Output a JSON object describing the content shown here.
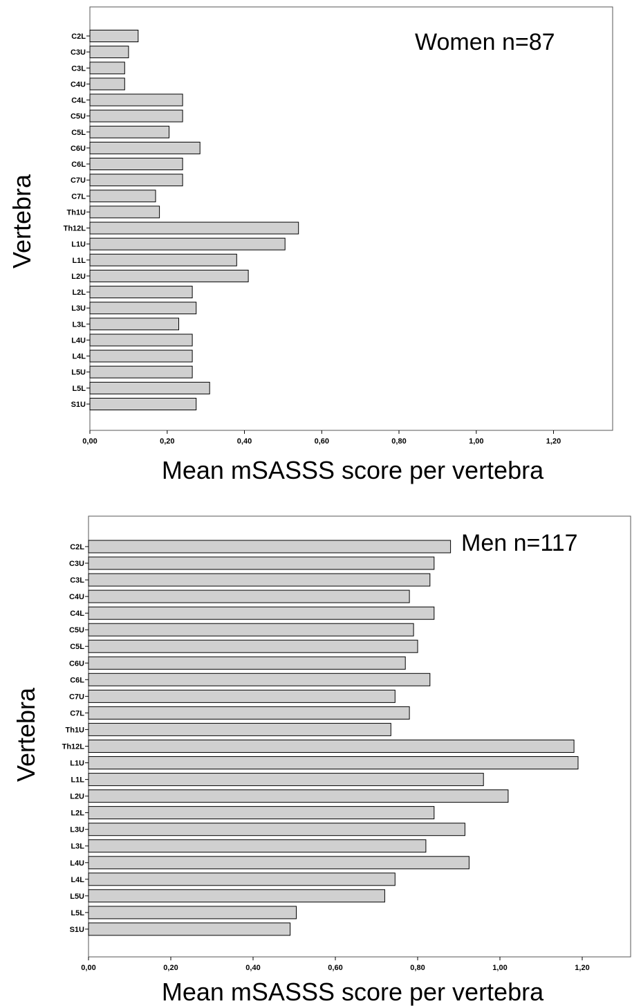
{
  "chart_data": [
    {
      "type": "bar",
      "orientation": "horizontal",
      "annotation": "Women n=87",
      "xlabel": "Mean mSASSS score per vertebra",
      "ylabel": "Vertebra",
      "xlim": [
        0,
        1.3
      ],
      "x_ticks": [
        "0,00",
        "0,20",
        "0,40",
        "0,60",
        "0,80",
        "1,00",
        "1,20"
      ],
      "categories": [
        "C2L",
        "C3U",
        "C3L",
        "C4U",
        "C4L",
        "C5U",
        "C5L",
        "C6U",
        "C6L",
        "C7U",
        "C7L",
        "Th1U",
        "Th12L",
        "L1U",
        "L1L",
        "L2U",
        "L2L",
        "L3U",
        "L3L",
        "L4U",
        "L4L",
        "L5U",
        "L5L",
        "S1U"
      ],
      "values": [
        0.125,
        0.1,
        0.09,
        0.09,
        0.24,
        0.24,
        0.205,
        0.285,
        0.24,
        0.24,
        0.17,
        0.18,
        0.54,
        0.505,
        0.38,
        0.41,
        0.265,
        0.275,
        0.23,
        0.265,
        0.265,
        0.265,
        0.31,
        0.275
      ],
      "grid": false
    },
    {
      "type": "bar",
      "orientation": "horizontal",
      "annotation": "Men n=117",
      "xlabel": "Mean mSASSS score per vertebra",
      "ylabel": "Vertebra",
      "xlim": [
        0,
        1.33
      ],
      "x_ticks": [
        "0,00",
        "0,20",
        "0,40",
        "0,60",
        "0,80",
        "1,00",
        "1,20"
      ],
      "categories": [
        "C2L",
        "C3U",
        "C3L",
        "C4U",
        "C4L",
        "C5U",
        "C5L",
        "C6U",
        "C6L",
        "C7U",
        "C7L",
        "Th1U",
        "Th12L",
        "L1U",
        "L1L",
        "L2U",
        "L2L",
        "L3U",
        "L3L",
        "L4U",
        "L4L",
        "L5U",
        "L5L",
        "S1U"
      ],
      "values": [
        0.88,
        0.84,
        0.83,
        0.78,
        0.84,
        0.79,
        0.8,
        0.77,
        0.83,
        0.745,
        0.78,
        0.735,
        1.18,
        1.19,
        0.96,
        1.02,
        0.84,
        0.915,
        0.82,
        0.925,
        0.745,
        0.72,
        0.505,
        0.49
      ],
      "grid": false
    }
  ]
}
